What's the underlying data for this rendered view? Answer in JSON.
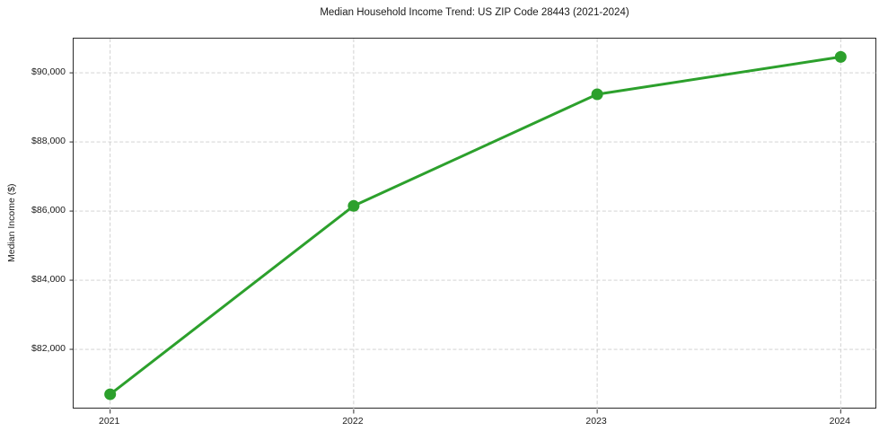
{
  "chart_data": {
    "type": "line",
    "title": "Median Household Income Trend: US ZIP Code 28443 (2021-2024)",
    "xlabel": "",
    "ylabel": "Median Income ($)",
    "x": [
      2021,
      2022,
      2023,
      2024
    ],
    "x_tick_labels": [
      "2021",
      "2022",
      "2023",
      "2024"
    ],
    "series": [
      {
        "name": "Median Household Income",
        "values": [
          80700,
          86150,
          89380,
          90460
        ],
        "color": "#2ca02c",
        "marker": "circle"
      }
    ],
    "y_ticks": [
      82000,
      84000,
      86000,
      88000,
      90000
    ],
    "y_tick_labels": [
      "$82,000",
      "$84,000",
      "$86,000",
      "$88,000",
      "$90,000"
    ],
    "ylim": [
      80260,
      90990
    ],
    "xlim": [
      2020.85,
      2024.15
    ],
    "grid": true,
    "grid_color": "#cccccc",
    "grid_style": "dashed",
    "legend_position": "none",
    "spine_color": "#2b2b2b",
    "text_color": "#1a1a1a",
    "background_color": "#ffffff"
  }
}
